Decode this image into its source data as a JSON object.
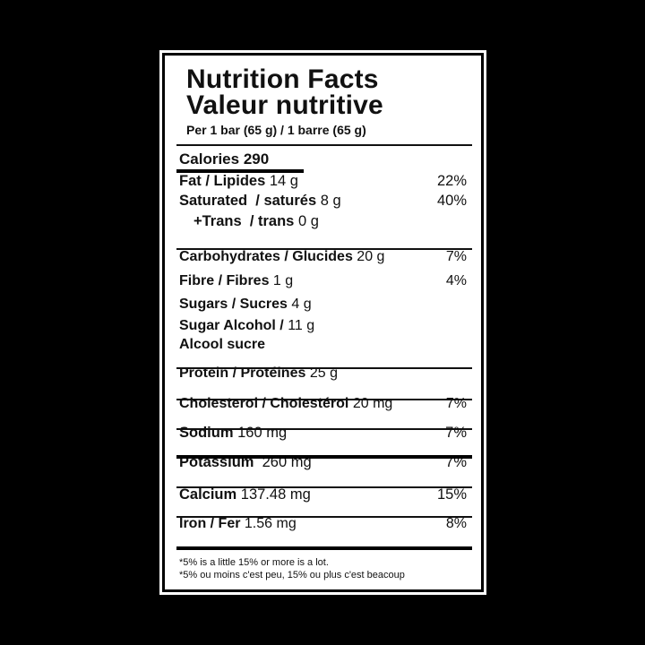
{
  "title_en": "Nutrition Facts",
  "title_fr": "Valeur nutritive",
  "serving": "Per 1 bar (65 g) / 1 barre (65 g)",
  "calories": {
    "label": "Calories",
    "value": "290"
  },
  "rows": [
    {
      "label": "Fat / Lipides",
      "amount": "14 g",
      "dv": "22%"
    },
    {
      "label": "Saturated  / saturés",
      "amount": "8 g",
      "dv": "40%"
    },
    {
      "label": "+Trans  / trans",
      "amount": "0 g",
      "dv": ""
    },
    {
      "label": "Carbohydrates / Glucides",
      "amount": "20 g",
      "dv": "7%"
    },
    {
      "label": "Fibre / Fibres",
      "amount": "1 g",
      "dv": "4%"
    },
    {
      "label": "Sugars / Sucres",
      "amount": "4 g",
      "dv": ""
    },
    {
      "label": "Sugar Alcohol /",
      "amount": "11 g",
      "dv": ""
    },
    {
      "label": "Alcool sucre",
      "amount": "",
      "dv": ""
    },
    {
      "label": "Protein / Protéines",
      "amount": "25 g",
      "dv": ""
    },
    {
      "label": "Cholesterol / Cholestérol",
      "amount": "20 mg",
      "dv": "7%"
    },
    {
      "label": "Sodium",
      "amount": "160 mg",
      "dv": "7%"
    },
    {
      "label": "Potassium ",
      "amount": "260 mg",
      "dv": "7%"
    },
    {
      "label": "Calcium",
      "amount": "137.48 mg",
      "dv": "15%"
    },
    {
      "label": "Iron / Fer",
      "amount": "1.56 mg",
      "dv": "8%"
    }
  ],
  "footnote_en": "*5% is a little 15% or more is a lot.",
  "footnote_fr": "*5% ou moins c'est peu, 15% ou plus c'est beacoup"
}
